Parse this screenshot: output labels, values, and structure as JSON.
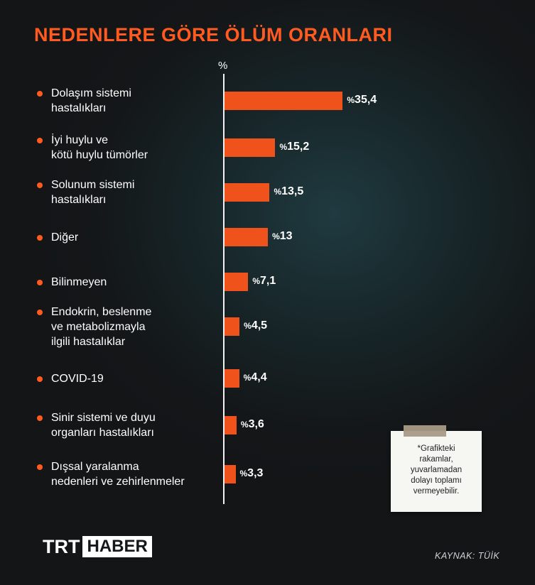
{
  "title": "NEDENLERE GÖRE ÖLÜM ORANLARI",
  "unit_header": "%",
  "note": {
    "lines": [
      "*Grafikteki",
      "rakamlar,",
      "yuvarlamadan",
      "dolayı toplamı",
      "vermeyebilir."
    ]
  },
  "logo": {
    "part1": "TRT",
    "part2": "HABER"
  },
  "source": "KAYNAK: TÜİK",
  "colors": {
    "accent": "#ff5a1f",
    "bar": "#f0521c",
    "background": "#15181b"
  },
  "chart_data": {
    "type": "bar",
    "orientation": "horizontal",
    "title": "NEDENLERE GÖRE ÖLÜM ORANLARI",
    "value_prefix": "%",
    "categories": [
      [
        "Dolaşım sistemi",
        "hastalıkları"
      ],
      [
        "İyi huylu ve",
        "kötü huylu tümörler"
      ],
      [
        "Solunum sistemi",
        "hastalıkları"
      ],
      [
        "Diğer"
      ],
      [
        "Bilinmeyen"
      ],
      [
        "Endokrin, beslenme",
        "ve metabolizmayla",
        "ilgili hastalıklar"
      ],
      [
        "COVID-19"
      ],
      [
        "Sinir sistemi ve duyu",
        "organları hastalıkları"
      ],
      [
        "Dışsal yaralanma",
        "nedenleri ve zehirlenmeler"
      ]
    ],
    "values": [
      35.4,
      15.2,
      13.5,
      13,
      7.1,
      4.5,
      4.4,
      3.6,
      3.3
    ],
    "value_labels": [
      "35,4",
      "15,2",
      "13,5",
      "13",
      "7,1",
      "4,5",
      "4,4",
      "3,6",
      "3,3"
    ],
    "grid": false,
    "legend": "none"
  }
}
